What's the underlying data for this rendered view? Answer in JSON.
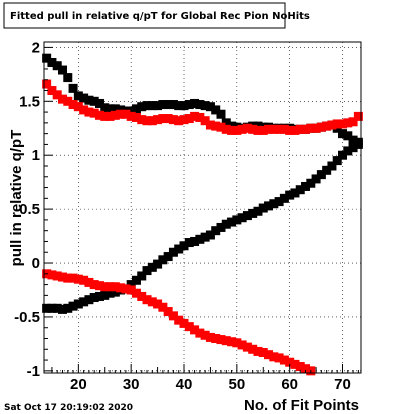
{
  "chart_data": {
    "type": "scatter",
    "title": "Fitted pull in relative q/pT for Global Rec Pion NoHits",
    "xlabel": "No. of Fit Points",
    "ylabel": "pull in relative q/pT",
    "xlim": [
      13.5,
      73.5
    ],
    "ylim": [
      -1.02,
      2.05
    ],
    "x_ticks": [
      20,
      30,
      40,
      50,
      60,
      70
    ],
    "y_ticks": [
      -1,
      -0.5,
      0,
      0.5,
      1,
      1.5,
      2
    ],
    "grid": true,
    "legend": "none",
    "timestamp": "Sat Oct 17 20:19:02 2020",
    "series": [
      {
        "color": "#000000",
        "marker": "square",
        "x": [
          14,
          15,
          16,
          17,
          18,
          19,
          20,
          21,
          22,
          23,
          24,
          25,
          26,
          27,
          28,
          29,
          30,
          31,
          32,
          33,
          34,
          35,
          36,
          37,
          38,
          39,
          40,
          41,
          42,
          43,
          44,
          45,
          46,
          47,
          48,
          49,
          50,
          51,
          52,
          53,
          54,
          55,
          56,
          57,
          58,
          59,
          60,
          61,
          62,
          63,
          64,
          65,
          66,
          67,
          68,
          69,
          70,
          71,
          72,
          73
        ],
        "y": [
          1.9,
          1.86,
          1.83,
          1.79,
          1.72,
          1.62,
          1.55,
          1.53,
          1.51,
          1.5,
          1.48,
          1.44,
          1.43,
          1.43,
          1.42,
          1.41,
          1.41,
          1.43,
          1.45,
          1.46,
          1.46,
          1.46,
          1.47,
          1.47,
          1.47,
          1.46,
          1.46,
          1.47,
          1.48,
          1.47,
          1.46,
          1.45,
          1.42,
          1.38,
          1.3,
          1.27,
          1.26,
          1.25,
          1.26,
          1.27,
          1.27,
          1.26,
          1.26,
          1.25,
          1.25,
          1.25,
          1.25,
          1.24,
          1.24,
          1.24,
          1.25,
          1.25,
          1.26,
          1.27,
          1.28,
          1.25,
          1.2,
          1.18,
          1.14,
          1.12
        ]
      },
      {
        "color": "#000000",
        "marker": "square",
        "x": [
          14,
          15,
          16,
          17,
          18,
          19,
          20,
          21,
          22,
          23,
          24,
          25,
          26,
          27,
          28,
          29,
          30,
          31,
          32,
          33,
          34,
          35,
          36,
          37,
          38,
          39,
          40,
          41,
          42,
          43,
          44,
          45,
          46,
          47,
          48,
          49,
          50,
          51,
          52,
          53,
          54,
          55,
          56,
          57,
          58,
          59,
          60,
          61,
          62,
          63,
          64,
          65,
          66,
          67,
          68,
          69,
          70,
          71,
          72,
          73
        ],
        "y": [
          -0.42,
          -0.42,
          -0.42,
          -0.43,
          -0.42,
          -0.4,
          -0.38,
          -0.36,
          -0.34,
          -0.32,
          -0.31,
          -0.3,
          -0.28,
          -0.27,
          -0.25,
          -0.24,
          -0.2,
          -0.16,
          -0.12,
          -0.07,
          -0.04,
          -0.01,
          0.03,
          0.06,
          0.1,
          0.13,
          0.16,
          0.19,
          0.2,
          0.22,
          0.24,
          0.26,
          0.3,
          0.33,
          0.36,
          0.38,
          0.4,
          0.42,
          0.44,
          0.46,
          0.48,
          0.51,
          0.53,
          0.55,
          0.57,
          0.6,
          0.63,
          0.65,
          0.68,
          0.71,
          0.74,
          0.78,
          0.82,
          0.86,
          0.9,
          0.95,
          1.0,
          1.04,
          1.07,
          1.1
        ]
      },
      {
        "color": "#ff0000",
        "marker": "square",
        "x": [
          14,
          15,
          16,
          17,
          18,
          19,
          20,
          21,
          22,
          23,
          24,
          25,
          26,
          27,
          28,
          29,
          30,
          31,
          32,
          33,
          34,
          35,
          36,
          37,
          38,
          39,
          40,
          41,
          42,
          43,
          44,
          45,
          46,
          47,
          48,
          49,
          50,
          51,
          52,
          53,
          54,
          55,
          56,
          57,
          58,
          59,
          60,
          61,
          62,
          63,
          64,
          65,
          66,
          67,
          68,
          69,
          70,
          71,
          72,
          73
        ],
        "y": [
          1.66,
          1.6,
          1.56,
          1.52,
          1.5,
          1.47,
          1.45,
          1.42,
          1.4,
          1.39,
          1.37,
          1.36,
          1.36,
          1.37,
          1.38,
          1.38,
          1.36,
          1.35,
          1.33,
          1.32,
          1.32,
          1.33,
          1.34,
          1.34,
          1.33,
          1.32,
          1.33,
          1.34,
          1.36,
          1.35,
          1.32,
          1.28,
          1.27,
          1.26,
          1.24,
          1.23,
          1.23,
          1.24,
          1.25,
          1.24,
          1.23,
          1.23,
          1.24,
          1.24,
          1.24,
          1.24,
          1.23,
          1.23,
          1.24,
          1.24,
          1.25,
          1.25,
          1.26,
          1.27,
          1.28,
          1.29,
          1.29,
          1.3,
          1.31,
          1.36
        ]
      },
      {
        "color": "#ff0000",
        "marker": "square",
        "x": [
          14,
          15,
          16,
          17,
          18,
          19,
          20,
          21,
          22,
          23,
          24,
          25,
          26,
          27,
          28,
          29,
          30,
          31,
          32,
          33,
          34,
          35,
          36,
          37,
          38,
          39,
          40,
          41,
          42,
          43,
          44,
          45,
          46,
          47,
          48,
          49,
          50,
          51,
          52,
          53,
          54,
          55,
          56,
          57,
          58,
          59,
          60,
          61,
          62,
          63,
          64
        ],
        "y": [
          -0.1,
          -0.11,
          -0.12,
          -0.13,
          -0.14,
          -0.14,
          -0.15,
          -0.16,
          -0.18,
          -0.2,
          -0.21,
          -0.22,
          -0.22,
          -0.22,
          -0.23,
          -0.24,
          -0.25,
          -0.28,
          -0.31,
          -0.34,
          -0.36,
          -0.38,
          -0.41,
          -0.45,
          -0.49,
          -0.53,
          -0.56,
          -0.59,
          -0.62,
          -0.65,
          -0.67,
          -0.69,
          -0.7,
          -0.71,
          -0.72,
          -0.73,
          -0.74,
          -0.76,
          -0.78,
          -0.8,
          -0.82,
          -0.83,
          -0.85,
          -0.87,
          -0.88,
          -0.9,
          -0.92,
          -0.94,
          -0.96,
          -0.98,
          -1.0
        ]
      }
    ]
  }
}
